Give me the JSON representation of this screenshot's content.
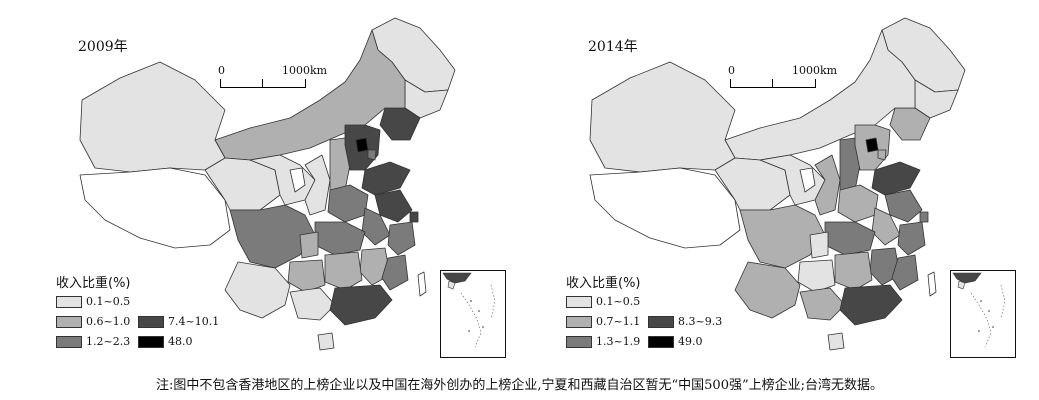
{
  "maps": [
    {
      "year": "2009年",
      "scale": {
        "zero": "0",
        "distance": "1000km"
      },
      "legend": {
        "title": "收入比重(%)",
        "classes": [
          {
            "label": "0.1~0.5",
            "color": "#e3e3e3"
          },
          {
            "label": "0.6~1.0",
            "color": "#b0b0b0"
          },
          {
            "label": "1.2~2.3",
            "color": "#7b7b7b"
          },
          {
            "label": "7.4~10.1",
            "color": "#474747"
          },
          {
            "label": "48.0",
            "color": "#000000"
          }
        ]
      }
    },
    {
      "year": "2014年",
      "scale": {
        "zero": "0",
        "distance": "1000km"
      },
      "legend": {
        "title": "收入比重(%)",
        "classes": [
          {
            "label": "0.1~0.5",
            "color": "#e3e3e3"
          },
          {
            "label": "0.7~1.1",
            "color": "#b0b0b0"
          },
          {
            "label": "1.3~1.9",
            "color": "#7b7b7b"
          },
          {
            "label": "8.3~9.3",
            "color": "#474747"
          },
          {
            "label": "49.0",
            "color": "#000000"
          }
        ]
      }
    }
  ],
  "note": "注:图中不包含香港地区的上榜企业以及中国在海外创办的上榜企业,宁夏和西藏自治区暂无“中国500强”上榜企业;台湾无数据。"
}
